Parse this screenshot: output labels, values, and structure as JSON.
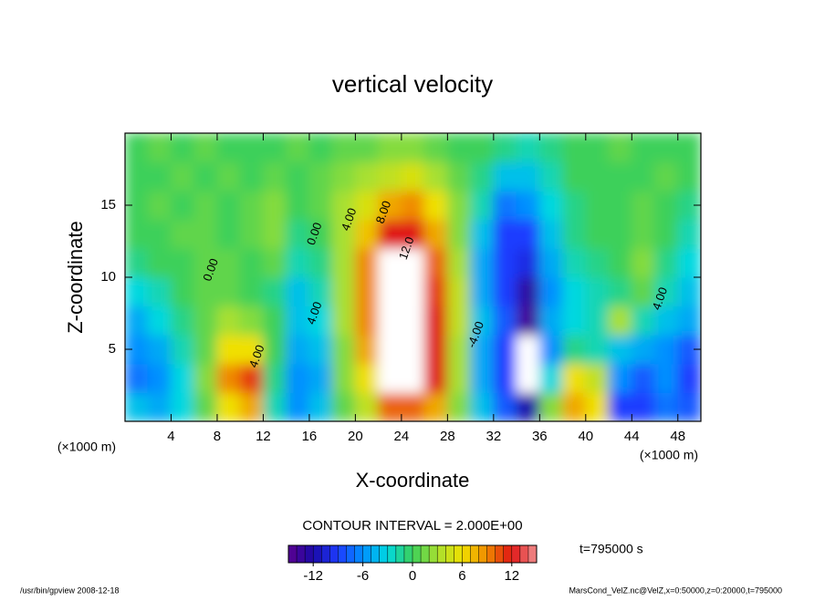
{
  "chart_data": {
    "type": "contour",
    "title": "vertical velocity",
    "xlabel": "X-coordinate",
    "ylabel": "Z-coordinate",
    "xunits": "(×1000 m)",
    "yunits": "(×1000 m)",
    "x": [
      1,
      3,
      5,
      7,
      9,
      11,
      13,
      15,
      17,
      19,
      21,
      23,
      25,
      27,
      29,
      31,
      33,
      35,
      37,
      39,
      41,
      43,
      45,
      47,
      49
    ],
    "y": [
      1,
      3,
      5,
      7,
      9,
      11,
      13,
      15,
      17,
      19
    ],
    "z": [
      [
        -4,
        -5,
        -3,
        1,
        6,
        8,
        -2,
        -6,
        -4,
        1,
        4,
        10,
        10,
        8,
        2,
        -4,
        -8,
        -12,
        2,
        8,
        6,
        -9,
        -9,
        -7,
        -8
      ],
      [
        -7,
        -6,
        -3,
        2,
        9,
        11,
        -1,
        -6,
        -5,
        2,
        6,
        16,
        16,
        12,
        3,
        -5,
        -9,
        -16,
        -3,
        6,
        4,
        -6,
        -8,
        -6,
        -9
      ],
      [
        -6,
        -5,
        -2,
        1,
        6,
        6,
        0,
        -5,
        -4,
        2,
        8,
        18,
        18,
        12,
        3,
        -5,
        -9,
        -16,
        -6,
        -1,
        -2,
        -4,
        -5,
        -6,
        -8
      ],
      [
        -5,
        -3,
        -1,
        1,
        3,
        2,
        0,
        -4,
        -3,
        3,
        9,
        18,
        18,
        12,
        4,
        -4,
        -8,
        -14,
        -5,
        -3,
        -2,
        3,
        -2,
        -4,
        -5
      ],
      [
        -3,
        -2,
        0,
        1,
        1,
        0,
        -1,
        -4,
        -2,
        3,
        9,
        18,
        18,
        11,
        4,
        -5,
        -9,
        -13,
        -6,
        -3,
        -2,
        -1,
        1,
        -2,
        -4
      ],
      [
        -1,
        0,
        0,
        1,
        1,
        0,
        1,
        -2,
        -1,
        3,
        9,
        17,
        16,
        10,
        3,
        -5,
        -9,
        -10,
        -5,
        -2,
        -1,
        0,
        2,
        -1,
        -3
      ],
      [
        0,
        0,
        1,
        1,
        0,
        1,
        2,
        -1,
        0,
        3,
        7,
        12,
        12,
        8,
        2,
        -4,
        -9,
        -9,
        -4,
        -1,
        0,
        0,
        1,
        0,
        -2
      ],
      [
        0,
        1,
        0,
        1,
        0,
        1,
        2,
        0,
        1,
        3,
        5,
        8,
        9,
        6,
        2,
        -2,
        -7,
        -6,
        -3,
        -1,
        0,
        0,
        1,
        0,
        -1
      ],
      [
        0,
        0,
        1,
        0,
        1,
        0,
        1,
        0,
        1,
        2,
        3,
        4,
        5,
        3,
        1,
        -1,
        -4,
        -4,
        -2,
        0,
        0,
        0,
        0,
        1,
        0
      ],
      [
        0,
        1,
        0,
        1,
        0,
        0,
        0,
        1,
        0,
        1,
        1,
        2,
        2,
        1,
        0,
        0,
        -1,
        -2,
        -1,
        0,
        0,
        1,
        0,
        0,
        0
      ]
    ],
    "xlim": [
      0,
      50
    ],
    "ylim": [
      0,
      20
    ],
    "xticks": [
      4,
      8,
      12,
      16,
      20,
      24,
      28,
      32,
      36,
      40,
      44,
      48
    ],
    "yticks": [
      5,
      10,
      15
    ],
    "clim": [
      -15,
      15
    ],
    "cticks": [
      -12,
      -6,
      0,
      6,
      12
    ],
    "colormap": [
      "#5a0090",
      "#1a0aa8",
      "#1e3cff",
      "#0090ff",
      "#00d8e0",
      "#3cd05a",
      "#a8e030",
      "#f0e000",
      "#f08a00",
      "#e01414",
      "#f09090"
    ],
    "contour_interval": "CONTOUR INTERVAL = 2.000E+00",
    "time": "t=795000 s",
    "contour_labels": [
      {
        "text": "0.00",
        "x": 7.5,
        "y": 10.5
      },
      {
        "text": "4.00",
        "x": 11.5,
        "y": 4.5
      },
      {
        "text": "0.00",
        "x": 16.5,
        "y": 13
      },
      {
        "text": "4.00",
        "x": 16.5,
        "y": 7.5
      },
      {
        "text": "4.00",
        "x": 19.5,
        "y": 14
      },
      {
        "text": "8.00",
        "x": 22.5,
        "y": 14.5
      },
      {
        "text": "12.0",
        "x": 24.5,
        "y": 12
      },
      {
        "text": "-4.00",
        "x": 30.5,
        "y": 6
      },
      {
        "text": "4.00",
        "x": 46.5,
        "y": 8.5
      }
    ],
    "footer_left": "/usr/bin/gpview   2008-12-18",
    "footer_right": "MarsCond_VelZ.nc@VelZ,x=0:50000,z=0:20000,t=795000"
  }
}
